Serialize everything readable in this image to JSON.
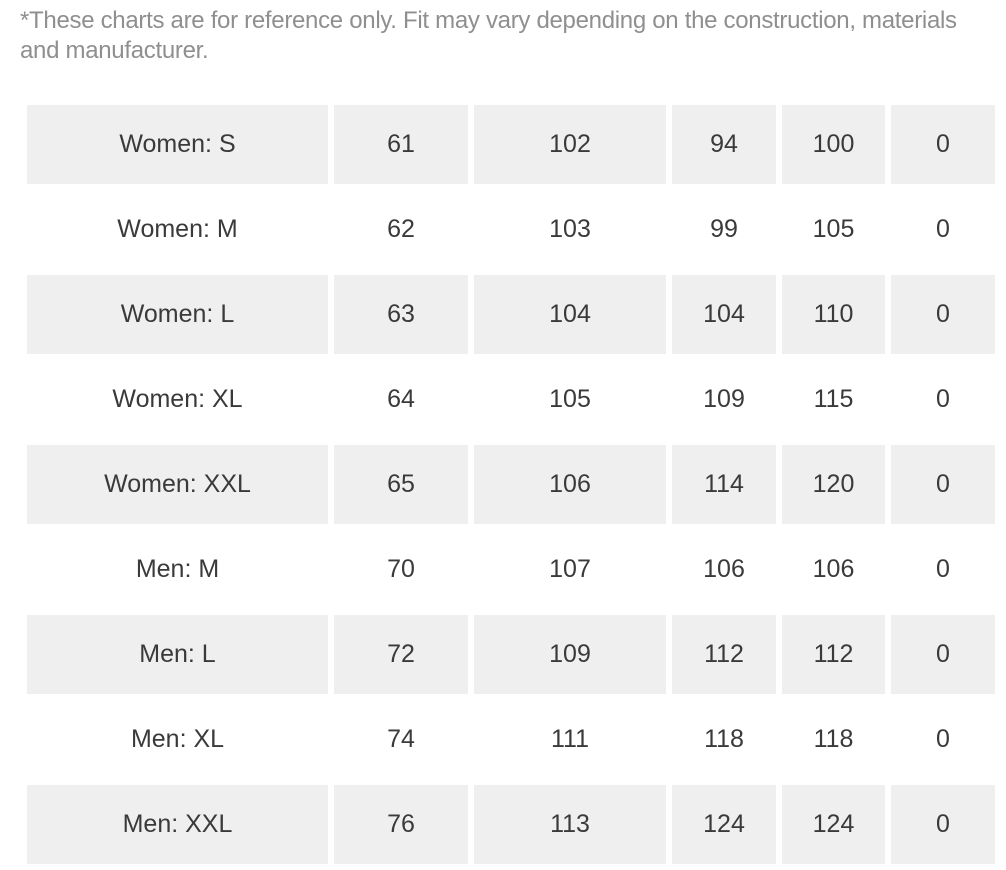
{
  "note": "*These charts are for reference only. Fit may vary depending on the construction, materials and manufacturer.",
  "rows": [
    {
      "size": "Women: S",
      "values": [
        "61",
        "102",
        "94",
        "100",
        "0"
      ]
    },
    {
      "size": "Women: M",
      "values": [
        "62",
        "103",
        "99",
        "105",
        "0"
      ]
    },
    {
      "size": "Women: L",
      "values": [
        "63",
        "104",
        "104",
        "110",
        "0"
      ]
    },
    {
      "size": "Women: XL",
      "values": [
        "64",
        "105",
        "109",
        "115",
        "0"
      ]
    },
    {
      "size": "Women: XXL",
      "values": [
        "65",
        "106",
        "114",
        "120",
        "0"
      ]
    },
    {
      "size": "Men: M",
      "values": [
        "70",
        "107",
        "106",
        "106",
        "0"
      ]
    },
    {
      "size": "Men: L",
      "values": [
        "72",
        "109",
        "112",
        "112",
        "0"
      ]
    },
    {
      "size": "Men: XL",
      "values": [
        "74",
        "111",
        "118",
        "118",
        "0"
      ]
    },
    {
      "size": "Men: XXL",
      "values": [
        "76",
        "113",
        "124",
        "124",
        "0"
      ]
    }
  ],
  "colors": {
    "note_text": "#8f8f8f",
    "cell_text": "#3a3a3a",
    "shaded_row": "#efefef"
  }
}
